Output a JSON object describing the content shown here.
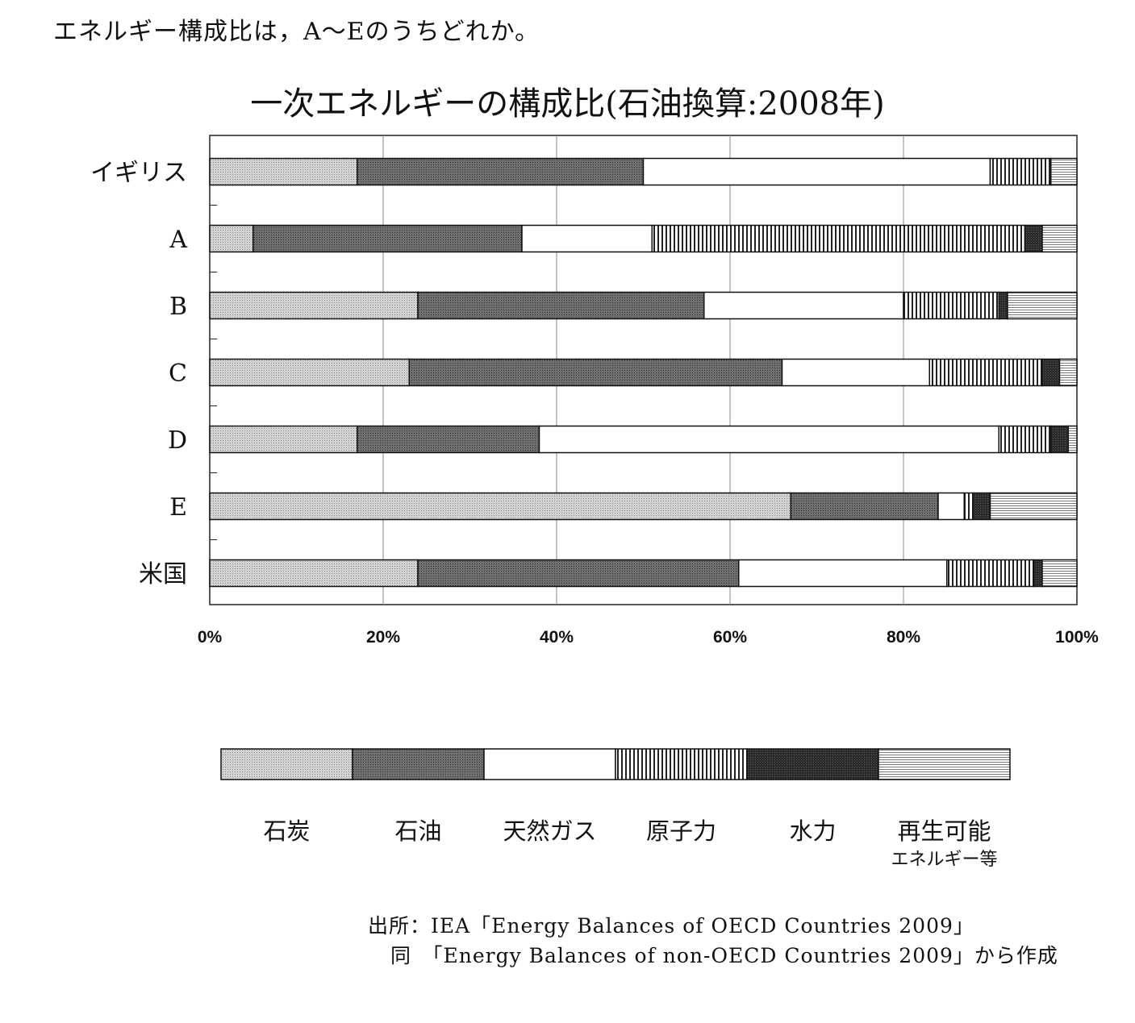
{
  "question": "エネルギー構成比は，A～Eのうちどれか。",
  "source": {
    "line1": "出所：IEA「Energy Balances of OECD Countries 2009」",
    "line2": "同　「Energy Balances of non-OECD Countries 2009」から作成"
  },
  "chart_data": {
    "type": "bar",
    "orientation": "horizontal",
    "stacked": true,
    "title": "一次エネルギーの構成比(石油換算:2008年)",
    "categories": [
      "イギリス",
      "A",
      "B",
      "C",
      "D",
      "E",
      "米国"
    ],
    "xlabel": "",
    "ylabel": "",
    "xlim": [
      0,
      100
    ],
    "xticks": [
      "0%",
      "20%",
      "40%",
      "60%",
      "80%",
      "100%"
    ],
    "grid": true,
    "legend_position": "bottom",
    "series": [
      {
        "name": "石炭",
        "color": "#c8c8c8",
        "pattern": "fine-dot",
        "values": [
          17,
          5,
          24,
          23,
          17,
          67,
          24
        ]
      },
      {
        "name": "石油",
        "color": "#6a6a6a",
        "pattern": "fine-dot-dark",
        "values": [
          33,
          31,
          33,
          43,
          21,
          17,
          37
        ]
      },
      {
        "name": "天然ガス",
        "color": "#ffffff",
        "pattern": "none",
        "values": [
          40,
          15,
          23,
          17,
          53,
          3,
          24
        ]
      },
      {
        "name": "原子力",
        "color": "#ffffff",
        "pattern": "vertical-lines",
        "values": [
          7,
          43,
          11,
          13,
          6,
          1,
          10
        ]
      },
      {
        "name": "水力",
        "color": "#333333",
        "pattern": "dark-dot",
        "values": [
          0,
          2,
          1,
          2,
          2,
          2,
          1
        ]
      },
      {
        "name": "再生可能エネルギー等",
        "label_line1": "再生可能",
        "label_line2": "エネルギー等",
        "color": "#ffffff",
        "pattern": "horizontal-lines",
        "values": [
          3,
          4,
          8,
          2,
          1,
          10,
          4
        ]
      }
    ]
  }
}
